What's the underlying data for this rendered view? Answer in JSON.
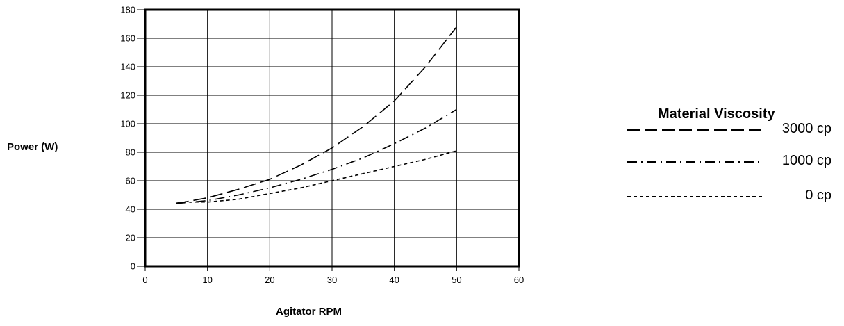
{
  "chart_data": {
    "type": "line",
    "title": "",
    "xlabel": "Agitator RPM",
    "ylabel": "Power (W)",
    "xlim": [
      0,
      60
    ],
    "ylim": [
      0,
      180
    ],
    "x_ticks": [
      0,
      10,
      20,
      30,
      40,
      50,
      60
    ],
    "y_ticks": [
      0,
      20,
      40,
      60,
      80,
      100,
      120,
      140,
      160,
      180
    ],
    "grid": true,
    "legend_title": "Material Viscosity",
    "legend_position": "right",
    "series": [
      {
        "name": "3000 cp",
        "dash": "long-dash",
        "x": [
          5,
          10,
          15,
          20,
          25,
          30,
          35,
          40,
          45,
          50
        ],
        "y": [
          44,
          48,
          54,
          61,
          71,
          83,
          98,
          116,
          140,
          168
        ]
      },
      {
        "name": "1000 cp",
        "dash": "dash-dot",
        "x": [
          5,
          10,
          15,
          20,
          25,
          30,
          35,
          40,
          45,
          50
        ],
        "y": [
          44,
          46,
          50,
          55,
          61,
          68,
          76,
          86,
          97,
          110
        ]
      },
      {
        "name": "0 cp",
        "dash": "short-dash",
        "x": [
          5,
          10,
          15,
          20,
          25,
          30,
          35,
          40,
          45,
          50
        ],
        "y": [
          45,
          45,
          47,
          51,
          55,
          60,
          65,
          70,
          75,
          81
        ]
      }
    ]
  }
}
